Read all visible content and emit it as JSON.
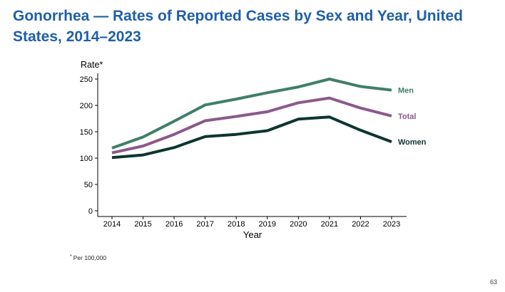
{
  "slide": {
    "title": "Gonorrhea — Rates of Reported Cases by Sex and Year, United States, 2014–2023",
    "footnote_mark": "*",
    "footnote_text": "Per 100,000",
    "page_number": "63"
  },
  "chart_data": {
    "type": "line",
    "title": "",
    "xlabel": "Year",
    "ylabel": "Rate*",
    "x": [
      "2014",
      "2015",
      "2016",
      "2017",
      "2018",
      "2019",
      "2020",
      "2021",
      "2022",
      "2023"
    ],
    "ylim": [
      0,
      260
    ],
    "yticks": [
      0,
      50,
      100,
      150,
      200,
      250
    ],
    "grid": false,
    "legend": "inline labels at right end of lines",
    "series": [
      {
        "name": "Men",
        "color": "#3f7f68",
        "values": [
          119,
          140,
          170,
          201,
          212,
          224,
          235,
          250,
          236,
          229
        ]
      },
      {
        "name": "Total",
        "color": "#8a5a8c",
        "values": [
          110,
          123,
          145,
          171,
          179,
          188,
          205,
          214,
          195,
          180
        ]
      },
      {
        "name": "Women",
        "color": "#0d3530",
        "values": [
          101,
          106,
          120,
          141,
          145,
          152,
          174,
          178,
          153,
          131
        ]
      }
    ]
  }
}
